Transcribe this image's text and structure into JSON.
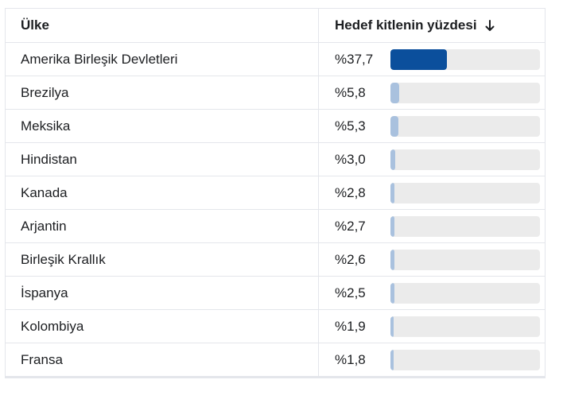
{
  "table": {
    "header": {
      "country": "Ülke",
      "percent": "Hedef kitlenin yüzdesi",
      "sort_icon": "arrow-down-icon"
    },
    "scale_max": 37.7,
    "colors": {
      "primary": "#0b4f9c",
      "secondary": "#a9c1de",
      "track": "#ebebeb"
    },
    "rows": [
      {
        "country": "Amerika Birleşik Devletleri",
        "percent_label": "%37,7",
        "value": 37.7
      },
      {
        "country": "Brezilya",
        "percent_label": "%5,8",
        "value": 5.8
      },
      {
        "country": "Meksika",
        "percent_label": "%5,3",
        "value": 5.3
      },
      {
        "country": "Hindistan",
        "percent_label": "%3,0",
        "value": 3.0
      },
      {
        "country": "Kanada",
        "percent_label": "%2,8",
        "value": 2.8
      },
      {
        "country": "Arjantin",
        "percent_label": "%2,7",
        "value": 2.7
      },
      {
        "country": "Birleşik Krallık",
        "percent_label": "%2,6",
        "value": 2.6
      },
      {
        "country": "İspanya",
        "percent_label": "%2,5",
        "value": 2.5
      },
      {
        "country": "Kolombiya",
        "percent_label": "%1,9",
        "value": 1.9
      },
      {
        "country": "Fransa",
        "percent_label": "%1,8",
        "value": 1.8
      }
    ]
  }
}
